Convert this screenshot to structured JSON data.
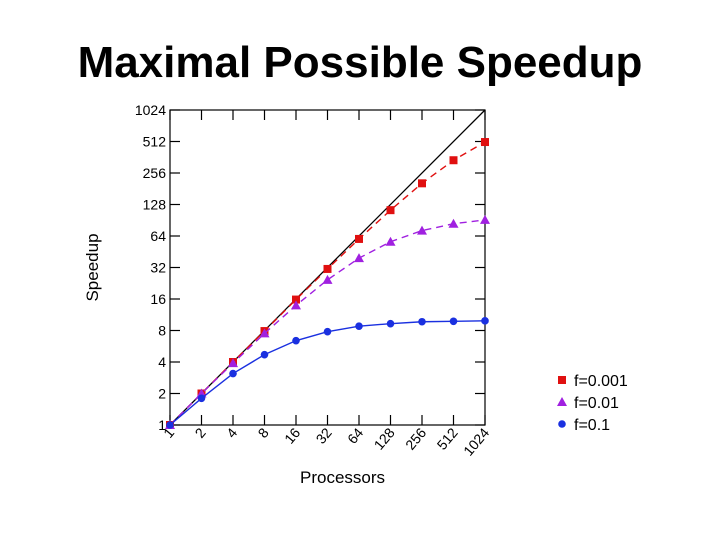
{
  "slide": {
    "title": "Maximal Possible Speedup"
  },
  "chart_data": {
    "type": "line",
    "title": "",
    "xlabel": "Processors",
    "ylabel": "Speedup",
    "x_scale": "log2",
    "y_scale": "log2",
    "x": [
      1,
      2,
      4,
      8,
      16,
      32,
      64,
      128,
      256,
      512,
      1024
    ],
    "x_tick_labels": [
      "1",
      "2",
      "4",
      "8",
      "16",
      "32",
      "64",
      "128",
      "256",
      "512",
      "1024"
    ],
    "y_ticks": [
      1,
      2,
      4,
      8,
      16,
      32,
      64,
      128,
      256,
      512,
      1024
    ],
    "y_tick_labels": [
      "1",
      "2",
      "4",
      "8",
      "16",
      "32",
      "64",
      "128",
      "256",
      "512",
      "1024"
    ],
    "xlim": [
      1,
      1024
    ],
    "ylim": [
      1,
      1024
    ],
    "grid": false,
    "legend_position": "right, outside bottom",
    "reference_line": {
      "description": "linear speedup",
      "color": "#000000"
    },
    "series": [
      {
        "name": "f=0.001",
        "marker": "square",
        "color": "#e01010",
        "dashed": true,
        "values": [
          1,
          2.0,
          4.0,
          7.9,
          15.8,
          31.0,
          60.0,
          113.0,
          204.0,
          339.0,
          506.0
        ]
      },
      {
        "name": "f=0.01",
        "marker": "triangle",
        "color": "#a020e0",
        "dashed": true,
        "values": [
          1,
          2.0,
          3.9,
          7.5,
          13.9,
          24.4,
          39.3,
          56.4,
          72.1,
          83.8,
          91.2
        ]
      },
      {
        "name": "f=0.1",
        "marker": "circle",
        "color": "#1a30e0",
        "dashed": false,
        "values": [
          1,
          1.8,
          3.1,
          4.7,
          6.4,
          7.8,
          8.8,
          9.3,
          9.7,
          9.8,
          9.9
        ]
      }
    ]
  }
}
